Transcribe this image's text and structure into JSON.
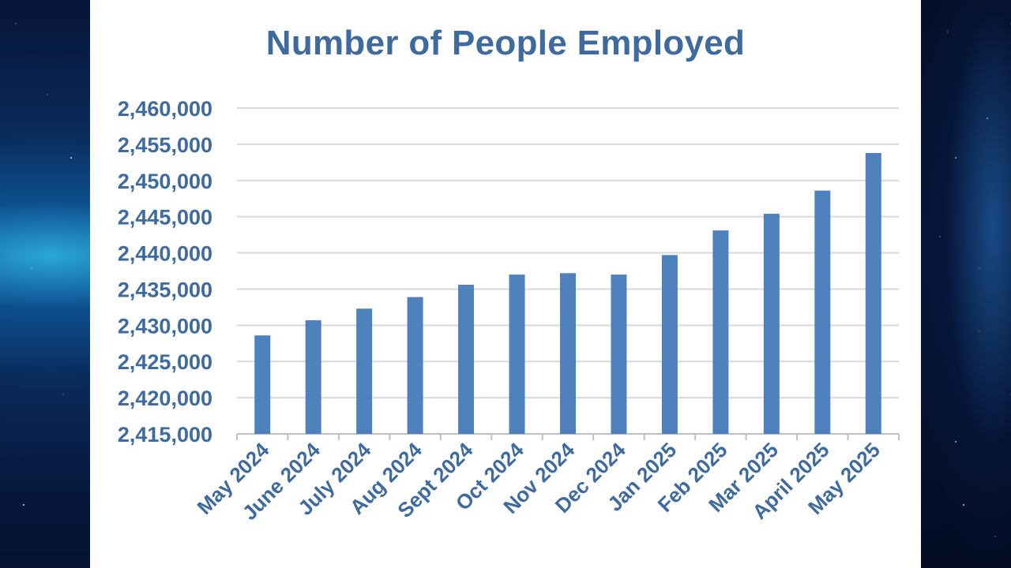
{
  "colors": {
    "bar": "#4f81bd",
    "text": "#3e6a9e",
    "grid": "#d9d9d9",
    "background_space": "#06163a"
  },
  "chart_data": {
    "type": "bar",
    "title": "Number of People Employed",
    "xlabel": "",
    "ylabel": "",
    "categories": [
      "May 2024",
      "June 2024",
      "July 2024",
      "Aug 2024",
      "Sept 2024",
      "Oct 2024",
      "Nov 2024",
      "Dec 2024",
      "Jan 2025",
      "Feb 2025",
      "Mar 2025",
      "April 2025",
      "May 2025"
    ],
    "values": [
      2428600,
      2430700,
      2432300,
      2433900,
      2435600,
      2437000,
      2437200,
      2437000,
      2439700,
      2443100,
      2445400,
      2448600,
      2453800
    ],
    "ylim": [
      2415000,
      2460000
    ],
    "yticks": [
      2415000,
      2420000,
      2425000,
      2430000,
      2435000,
      2440000,
      2445000,
      2450000,
      2455000,
      2460000
    ],
    "ytick_labels": [
      "2,415,000",
      "2,420,000",
      "2,425,000",
      "2,430,000",
      "2,435,000",
      "2,440,000",
      "2,445,000",
      "2,450,000",
      "2,455,000",
      "2,460,000"
    ],
    "grid": true,
    "legend": "none"
  }
}
